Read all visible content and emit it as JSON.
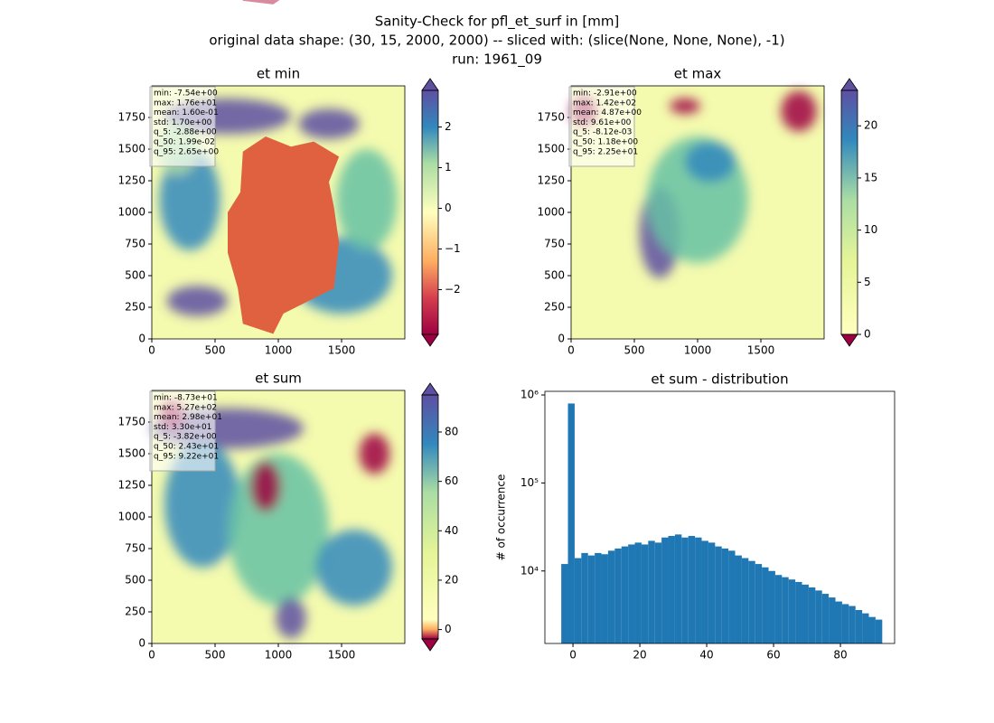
{
  "chart_data": [
    {
      "type": "heatmap",
      "title": "et min",
      "suptitle": [
        "Sanity-Check for pfl_et_surf in [mm]",
        "original data shape: (30, 15, 2000, 2000) -- sliced with: (slice(None, None, None), -1)",
        "run: 1961_09"
      ],
      "xlim": [
        0,
        2000
      ],
      "ylim": [
        0,
        2000
      ],
      "xticks": [
        0,
        500,
        1000,
        1500
      ],
      "yticks": [
        0,
        250,
        500,
        750,
        1000,
        1250,
        1500,
        1750
      ],
      "stats": [
        "min: -7.54e+00",
        "max: 1.76e+01",
        "mean: 1.60e-01",
        "std: 1.70e+00",
        "q_5: -2.88e+00",
        "q_50: 1.99e-02",
        "q_95: 2.65e+00"
      ],
      "clim": [
        -3.1,
        2.9
      ],
      "cticks": [
        {
          "value": -2,
          "label": "−2"
        },
        {
          "value": -1,
          "label": "−1"
        },
        0,
        1,
        2
      ]
    },
    {
      "type": "heatmap",
      "title": "et max",
      "xlim": [
        0,
        2000
      ],
      "ylim": [
        0,
        2000
      ],
      "xticks": [
        0,
        500,
        1000,
        1500
      ],
      "yticks": [
        0,
        250,
        500,
        750,
        1000,
        1250,
        1500,
        1750
      ],
      "stats": [
        "min: -2.91e+00",
        "max: 1.42e+02",
        "mean: 4.87e+00",
        "std: 9.61e+00",
        "q_5: -8.12e-03",
        "q_50: 1.18e+00",
        "q_95: 2.25e+01"
      ],
      "clim": [
        0,
        23.4
      ],
      "cticks": [
        0,
        5,
        10,
        15,
        20
      ]
    },
    {
      "type": "heatmap",
      "title": "et sum",
      "xlim": [
        0,
        2000
      ],
      "ylim": [
        0,
        2000
      ],
      "xticks": [
        0,
        500,
        1000,
        1500
      ],
      "yticks": [
        0,
        250,
        500,
        750,
        1000,
        1250,
        1500,
        1750
      ],
      "stats": [
        "min: -8.73e+01",
        "max: 5.27e+02",
        "mean: 2.98e+01",
        "std: 3.30e+01",
        "q_5: -3.82e+00",
        "q_50: 2.43e+01",
        "q_95: 9.22e+01"
      ],
      "clim": [
        -3.8,
        95
      ],
      "cticks": [
        0,
        20,
        40,
        60,
        80
      ]
    },
    {
      "type": "histogram",
      "title": "et sum - distribution",
      "y_label": "# of occurrence",
      "color": "#1f77b4",
      "log_y": true,
      "xlim": [
        -8.4,
        96.2
      ],
      "ylim": [
        1500,
        1100000
      ],
      "xticks": [
        0,
        20,
        40,
        60,
        80
      ],
      "yticks": [
        {
          "value": 10000,
          "label": "10⁴"
        },
        {
          "value": 100000,
          "label": "10⁵"
        },
        {
          "value": 1000000,
          "label": "10⁶"
        }
      ],
      "bins": [
        -3.5,
        -1.5,
        0.5,
        2.5,
        4.5,
        6.5,
        8.5,
        10.5,
        12.5,
        14.5,
        16.5,
        18.5,
        20.5,
        22.5,
        24.5,
        26.5,
        28.5,
        30.5,
        32.5,
        34.5,
        36.5,
        38.5,
        40.5,
        42.5,
        44.5,
        46.5,
        48.5,
        50.5,
        52.5,
        54.5,
        56.5,
        58.5,
        60.5,
        62.5,
        64.5,
        66.5,
        68.5,
        70.5,
        72.5,
        74.5,
        76.5,
        78.5,
        80.5,
        82.5,
        84.5,
        86.5,
        88.5,
        90.5,
        92.5
      ],
      "values": [
        12000,
        800000,
        14000,
        16000,
        15000,
        16000,
        15500,
        17000,
        18000,
        19000,
        20000,
        21000,
        20000,
        22000,
        21000,
        24000,
        25000,
        26000,
        24000,
        25000,
        24000,
        22000,
        21000,
        19000,
        18000,
        17000,
        15000,
        14000,
        13000,
        12000,
        11000,
        10000,
        9000,
        8500,
        8000,
        7500,
        7000,
        6500,
        6000,
        5500,
        5000,
        4500,
        4200,
        4000,
        3600,
        3300,
        3000,
        2800
      ]
    }
  ]
}
